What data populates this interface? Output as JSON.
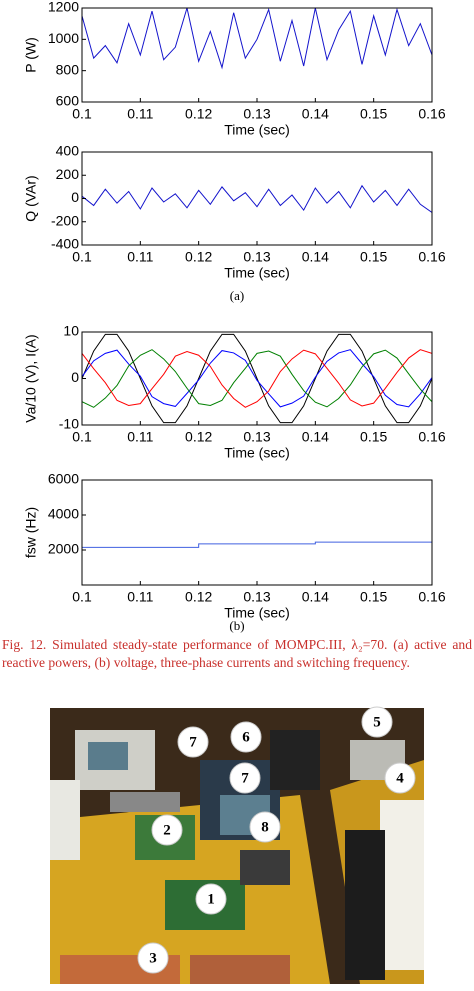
{
  "chart_data": [
    {
      "type": "line",
      "xlabel": "Time (sec)",
      "ylabel": "P (W)",
      "x": [
        0.1,
        0.102,
        0.104,
        0.106,
        0.108,
        0.11,
        0.112,
        0.114,
        0.116,
        0.118,
        0.12,
        0.122,
        0.124,
        0.126,
        0.128,
        0.13,
        0.132,
        0.134,
        0.136,
        0.138,
        0.14,
        0.142,
        0.144,
        0.146,
        0.148,
        0.15,
        0.152,
        0.154,
        0.156,
        0.158,
        0.16
      ],
      "series": [
        {
          "color": "#1414cc",
          "values": [
            1150,
            880,
            960,
            850,
            1100,
            900,
            1180,
            870,
            950,
            1200,
            860,
            1050,
            820,
            1170,
            880,
            1000,
            1190,
            860,
            1120,
            830,
            1200,
            870,
            1060,
            1180,
            840,
            1150,
            900,
            1190,
            960,
            1100,
            900
          ]
        }
      ],
      "xlim": [
        0.1,
        0.16
      ],
      "xticks": [
        0.1,
        0.11,
        0.12,
        0.13,
        0.14,
        0.15,
        0.16
      ],
      "ylim": [
        600,
        1200
      ],
      "yticks": [
        600,
        800,
        1000,
        1200
      ]
    },
    {
      "type": "line",
      "xlabel": "Time (sec)",
      "ylabel": "Q (VAr)",
      "x": [
        0.1,
        0.102,
        0.104,
        0.106,
        0.108,
        0.11,
        0.112,
        0.114,
        0.116,
        0.118,
        0.12,
        0.122,
        0.124,
        0.126,
        0.128,
        0.13,
        0.132,
        0.134,
        0.136,
        0.138,
        0.14,
        0.142,
        0.144,
        0.146,
        0.148,
        0.15,
        0.152,
        0.154,
        0.156,
        0.158,
        0.16
      ],
      "series": [
        {
          "color": "#1414cc",
          "values": [
            20,
            -60,
            80,
            -40,
            60,
            -90,
            90,
            -30,
            40,
            -80,
            70,
            -50,
            100,
            -20,
            50,
            -70,
            80,
            -60,
            30,
            -100,
            90,
            -40,
            60,
            -80,
            110,
            -30,
            70,
            -60,
            80,
            -50,
            -120
          ]
        }
      ],
      "xlim": [
        0.1,
        0.16
      ],
      "xticks": [
        0.1,
        0.11,
        0.12,
        0.13,
        0.14,
        0.15,
        0.16
      ],
      "ylim": [
        -400,
        400
      ],
      "yticks": [
        -400,
        -200,
        0,
        200,
        400
      ]
    },
    {
      "type": "line",
      "xlabel": "Time (sec)",
      "ylabel": "Va/10 (V), I(A)",
      "x": [
        0.1,
        0.102,
        0.104,
        0.106,
        0.108,
        0.11,
        0.112,
        0.114,
        0.116,
        0.118,
        0.12,
        0.122,
        0.124,
        0.126,
        0.128,
        0.13,
        0.132,
        0.134,
        0.136,
        0.138,
        0.14,
        0.142,
        0.144,
        0.146,
        0.148,
        0.15,
        0.152,
        0.154,
        0.156,
        0.158,
        0.16
      ],
      "series": [
        {
          "color": "#000000",
          "values": [
            0,
            5.9,
            9.5,
            9.5,
            5.9,
            0,
            -5.9,
            -9.5,
            -9.5,
            -5.9,
            0,
            5.9,
            9.5,
            9.5,
            5.9,
            0,
            -5.9,
            -9.5,
            -9.5,
            -5.9,
            0,
            5.9,
            9.5,
            9.5,
            5.9,
            0,
            -5.9,
            -9.5,
            -9.5,
            -5.9,
            0
          ]
        },
        {
          "color": "#0000ff",
          "values": [
            0.4,
            3.8,
            5.4,
            6.1,
            3.1,
            0.5,
            -3.9,
            -5.4,
            -6.0,
            -3.2,
            -0.3,
            3.3,
            6.0,
            5.5,
            3.9,
            -0.4,
            -3.3,
            -6.1,
            -5.3,
            -3.8,
            0.3,
            3.7,
            5.5,
            6.2,
            3.2,
            0.4,
            -3.6,
            -5.6,
            -6.1,
            -3.3,
            0.2
          ]
        },
        {
          "color": "#008000",
          "values": [
            -5.0,
            -6.2,
            -4.2,
            -1.5,
            2.7,
            5.0,
            6.2,
            4.2,
            1.5,
            -2.1,
            -5.4,
            -5.8,
            -4.7,
            -0.9,
            2.2,
            5.4,
            5.9,
            4.8,
            0.9,
            -2.6,
            -5.1,
            -6.1,
            -4.3,
            -1.4,
            2.5,
            5.3,
            6.1,
            4.4,
            1.0,
            -2.3,
            -5.0
          ]
        },
        {
          "color": "#ff0000",
          "values": [
            5.4,
            2.1,
            -0.9,
            -4.7,
            -5.8,
            -5.4,
            -2.2,
            0.9,
            4.8,
            5.8,
            5.0,
            2.6,
            -1.4,
            -4.3,
            -6.2,
            -5.0,
            -2.7,
            1.5,
            4.2,
            6.1,
            5.3,
            2.2,
            -1.0,
            -4.6,
            -5.9,
            -5.3,
            -2.1,
            1.3,
            4.4,
            6.2,
            5.4
          ]
        }
      ],
      "xlim": [
        0.1,
        0.16
      ],
      "xticks": [
        0.1,
        0.11,
        0.12,
        0.13,
        0.14,
        0.15,
        0.16
      ],
      "ylim": [
        -10,
        10
      ],
      "yticks": [
        -10,
        0,
        10
      ]
    },
    {
      "type": "line",
      "xlabel": "Time (sec)",
      "ylabel": "fsw (Hz)",
      "x": [
        0.1,
        0.12,
        0.12,
        0.14,
        0.14,
        0.16
      ],
      "series": [
        {
          "color": "#4060e0",
          "values": [
            2150,
            2150,
            2350,
            2350,
            2450,
            2450
          ]
        }
      ],
      "xlim": [
        0.1,
        0.16
      ],
      "xticks": [
        0.1,
        0.11,
        0.12,
        0.13,
        0.14,
        0.15,
        0.16
      ],
      "ylim": [
        0,
        6000
      ],
      "yticks": [
        2000,
        4000,
        6000
      ]
    }
  ],
  "panel_labels": [
    "(a)",
    "(b)"
  ],
  "caption": "Fig. 12.  Simulated steady-state performance of MOMPC.III, λ₂=70. (a) active and reactive powers, (b) voltage, three-phase currents and switching frequency.",
  "photo": {
    "labels": [
      "7",
      "6",
      "5",
      "7",
      "4",
      "2",
      "8",
      "1",
      "3"
    ]
  }
}
